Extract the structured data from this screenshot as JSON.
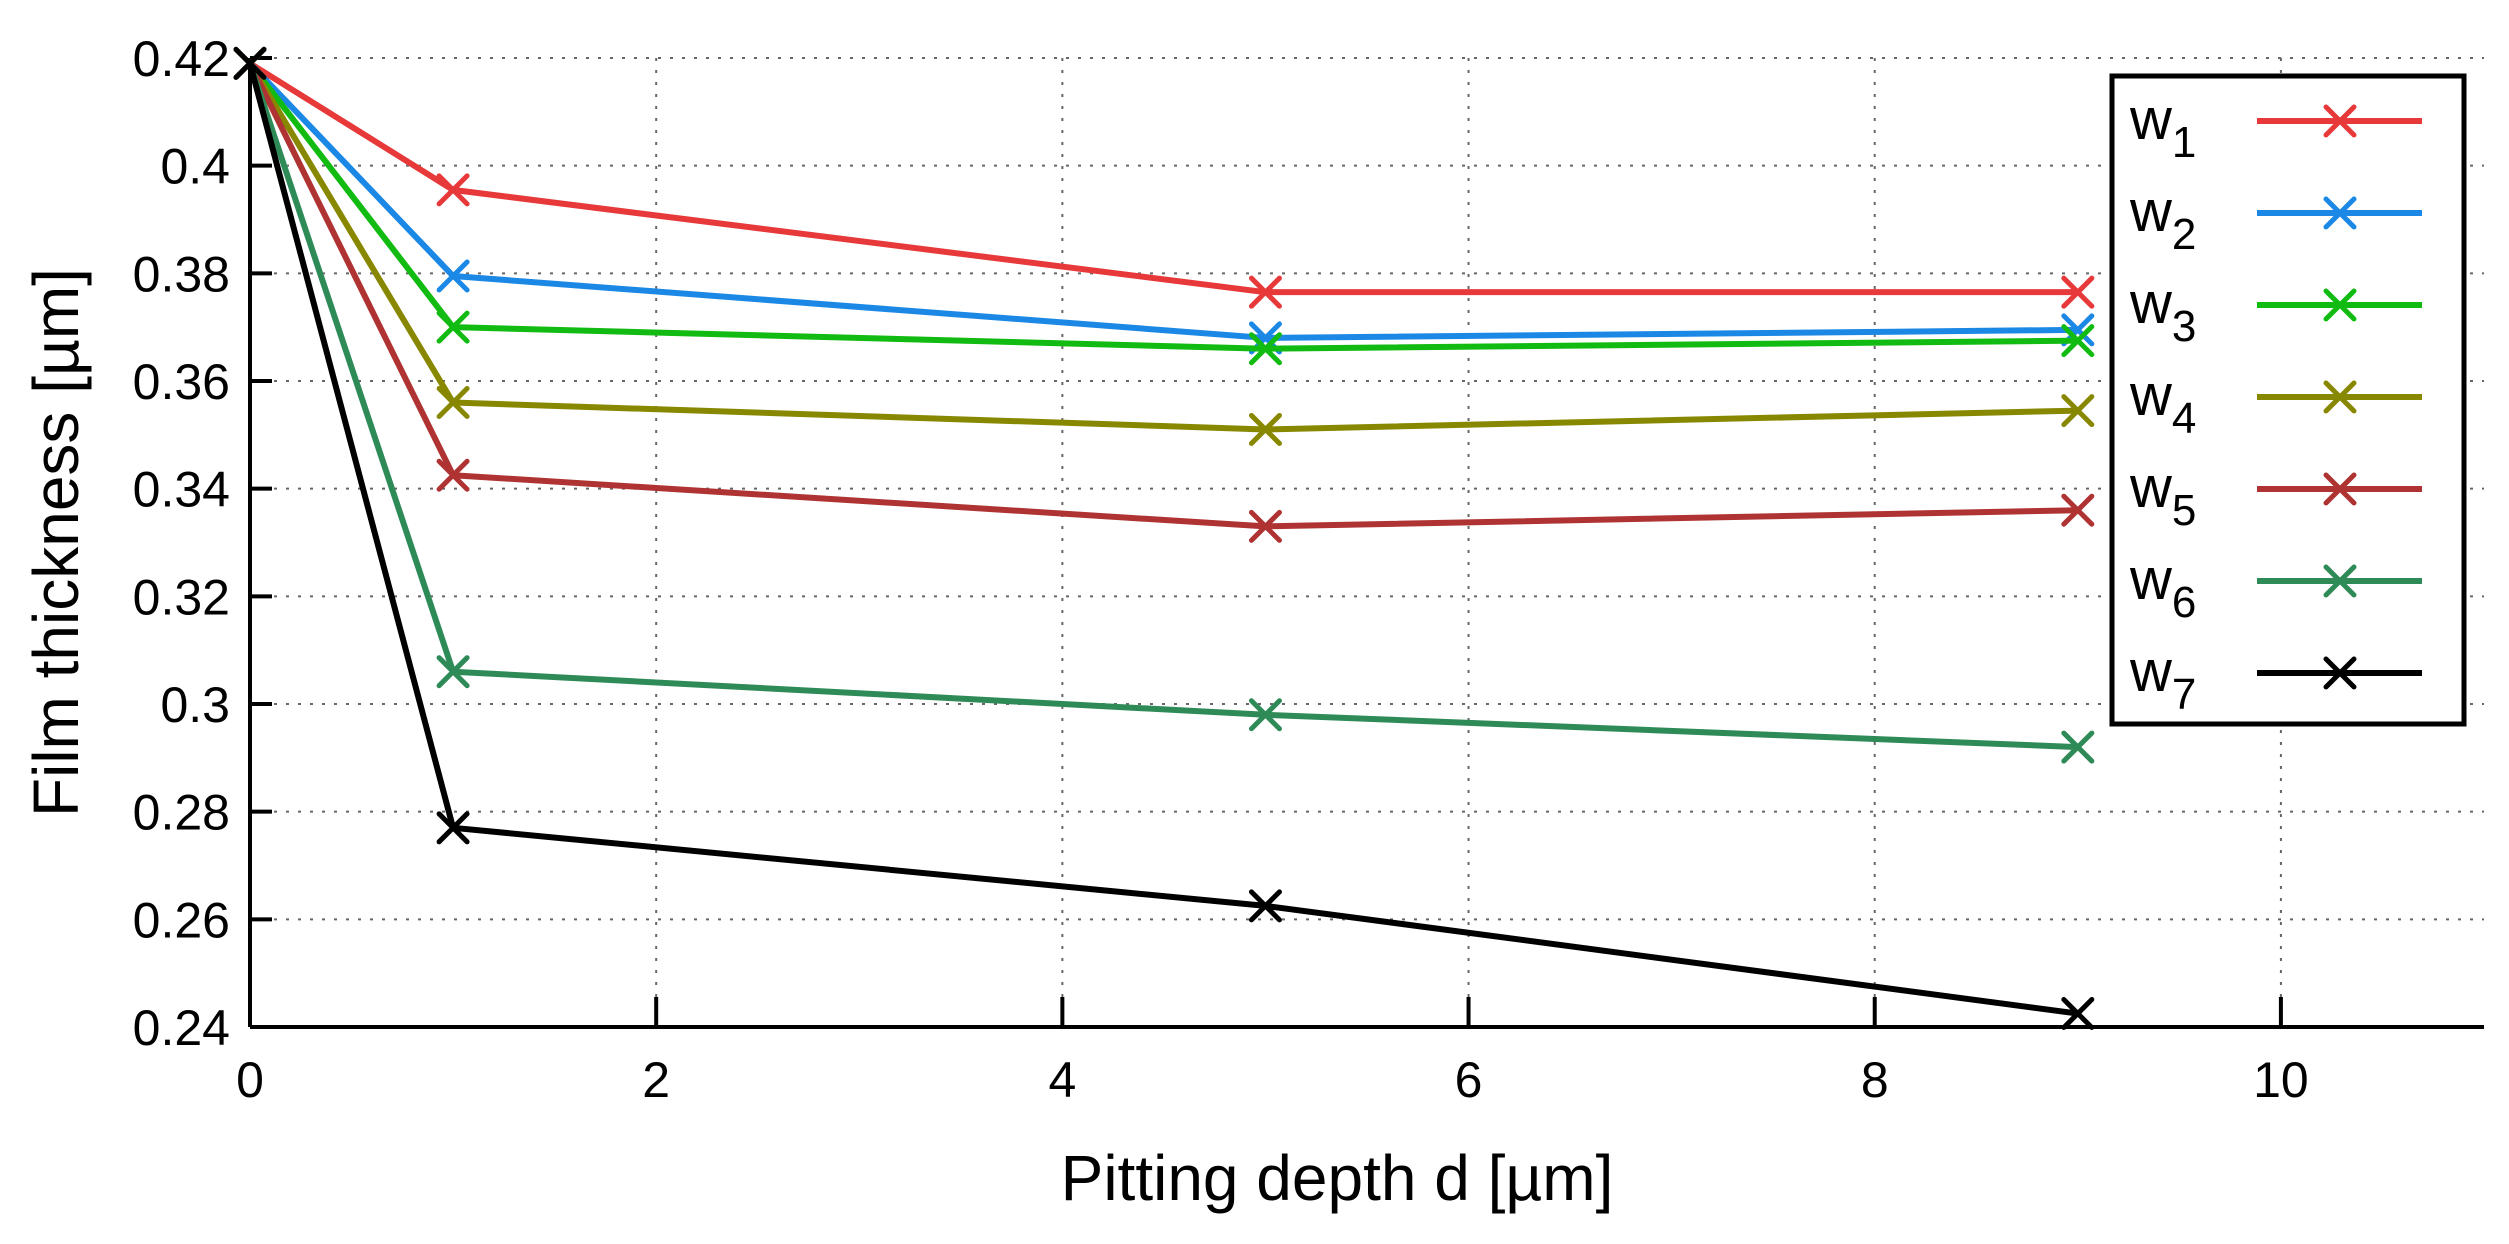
{
  "chart_data": {
    "type": "line",
    "title": "",
    "xlabel": "Pitting depth d [µm]",
    "ylabel": "Film thickness [µm]",
    "xlim": [
      0,
      11
    ],
    "ylim": [
      0.24,
      0.42
    ],
    "x_ticks": [
      "0",
      "2",
      "4",
      "6",
      "8",
      "10"
    ],
    "y_ticks": [
      "0.42",
      "0.4",
      "0.38",
      "0.36",
      "0.34",
      "0.32",
      "0.3",
      "0.28",
      "0.26",
      "0.24"
    ],
    "grid": true,
    "legend_position": "top-right",
    "x": [
      0,
      1,
      5,
      9
    ],
    "series": [
      {
        "name": "w",
        "subscript": "1",
        "color": "#e8393a",
        "values": [
          0.419,
          0.3955,
          0.3765,
          0.3765
        ]
      },
      {
        "name": "w",
        "subscript": "2",
        "color": "#1b88e6",
        "values": [
          0.419,
          0.3795,
          0.368,
          0.3695
        ]
      },
      {
        "name": "w",
        "subscript": "3",
        "color": "#11bb11",
        "values": [
          0.419,
          0.37,
          0.366,
          0.3675
        ]
      },
      {
        "name": "w",
        "subscript": "4",
        "color": "#888800",
        "values": [
          0.419,
          0.356,
          0.351,
          0.3545
        ]
      },
      {
        "name": "w",
        "subscript": "5",
        "color": "#b03333",
        "values": [
          0.419,
          0.3425,
          0.333,
          0.336
        ]
      },
      {
        "name": "w",
        "subscript": "6",
        "color": "#2e8b57",
        "values": [
          0.419,
          0.306,
          0.298,
          0.292
        ]
      },
      {
        "name": "w",
        "subscript": "7",
        "color": "#000000",
        "values": [
          0.419,
          0.277,
          0.2625,
          0.2425
        ]
      }
    ]
  }
}
